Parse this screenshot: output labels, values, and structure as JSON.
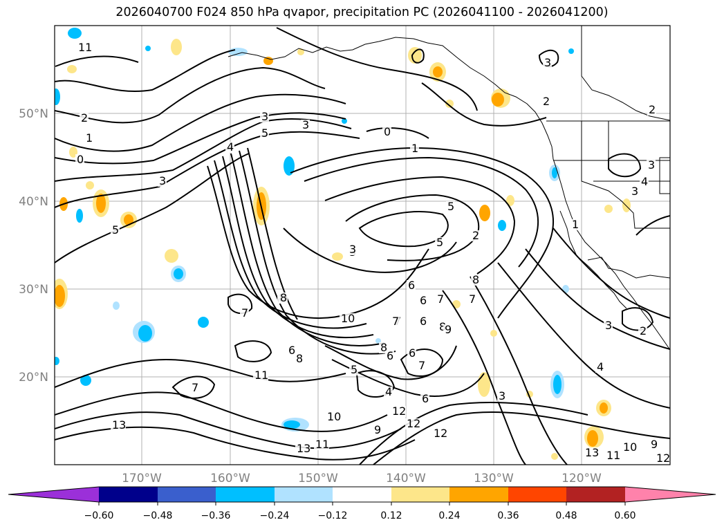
{
  "title": "2026040700 F024 850 hPa qvapor, precipitation PC (2026041100 - 2026041200)",
  "map": {
    "lon_labels": [
      "170°W",
      "160°W",
      "150°W",
      "140°W",
      "130°W",
      "120°W"
    ],
    "lat_labels": [
      "50°N",
      "40°N",
      "30°N",
      "20°N"
    ],
    "extent": {
      "lon_min": -180,
      "lon_max": -110,
      "lat_min": 10,
      "lat_max": 60
    },
    "grid": true,
    "contour_field": "850 hPa qvapor",
    "contour_labels": [
      "1",
      "2",
      "3",
      "4",
      "5",
      "6",
      "7",
      "8",
      "9",
      "10",
      "11",
      "12",
      "13",
      "0"
    ]
  },
  "colorbar": {
    "ticks": [
      "−0.60",
      "−0.48",
      "−0.36",
      "−0.24",
      "−0.12",
      "0.12",
      "0.24",
      "0.36",
      "0.48",
      "0.60"
    ],
    "colors": [
      "#9b30d9",
      "#00008b",
      "#3a5fcd",
      "#00bfff",
      "#b0e2ff",
      "#ffffff",
      "#fde68a",
      "#ffa500",
      "#ff4500",
      "#b22222",
      "#ff82ab"
    ],
    "extend": "both"
  },
  "contour_text": [
    {
      "t": "2"
    },
    {
      "t": "1"
    },
    {
      "t": "0"
    },
    {
      "t": "3"
    },
    {
      "t": "5"
    },
    {
      "t": "3"
    },
    {
      "t": "3"
    },
    {
      "t": "5"
    },
    {
      "t": "4"
    },
    {
      "t": "3"
    },
    {
      "t": "0"
    },
    {
      "t": "1"
    },
    {
      "t": "5"
    },
    {
      "t": "5"
    },
    {
      "t": "3"
    },
    {
      "t": "6"
    },
    {
      "t": "6"
    },
    {
      "t": "7"
    },
    {
      "t": "7"
    },
    {
      "t": "8"
    },
    {
      "t": "8"
    },
    {
      "t": "6"
    },
    {
      "t": "8"
    },
    {
      "t": "6"
    },
    {
      "t": "7"
    },
    {
      "t": "8"
    },
    {
      "t": "9"
    },
    {
      "t": "8"
    },
    {
      "t": "7"
    },
    {
      "t": "7"
    },
    {
      "t": "6"
    },
    {
      "t": "5"
    },
    {
      "t": "4"
    },
    {
      "t": "6"
    },
    {
      "t": "7"
    },
    {
      "t": "3"
    },
    {
      "t": "4"
    },
    {
      "t": "3"
    },
    {
      "t": "2"
    },
    {
      "t": "1"
    },
    {
      "t": "2"
    },
    {
      "t": "2"
    },
    {
      "t": "2"
    },
    {
      "t": "3"
    },
    {
      "t": "3"
    },
    {
      "t": "4"
    },
    {
      "t": "11"
    },
    {
      "t": "10"
    },
    {
      "t": "11"
    },
    {
      "t": "12"
    },
    {
      "t": "9"
    },
    {
      "t": "12"
    },
    {
      "t": "13"
    },
    {
      "t": "13"
    },
    {
      "t": "12"
    },
    {
      "t": "13"
    },
    {
      "t": "10"
    },
    {
      "t": "9"
    },
    {
      "t": "8"
    },
    {
      "t": "7"
    },
    {
      "t": "11"
    },
    {
      "t": "10"
    },
    {
      "t": "11"
    },
    {
      "t": "12"
    },
    {
      "t": "6"
    },
    {
      "t": "3"
    }
  ]
}
